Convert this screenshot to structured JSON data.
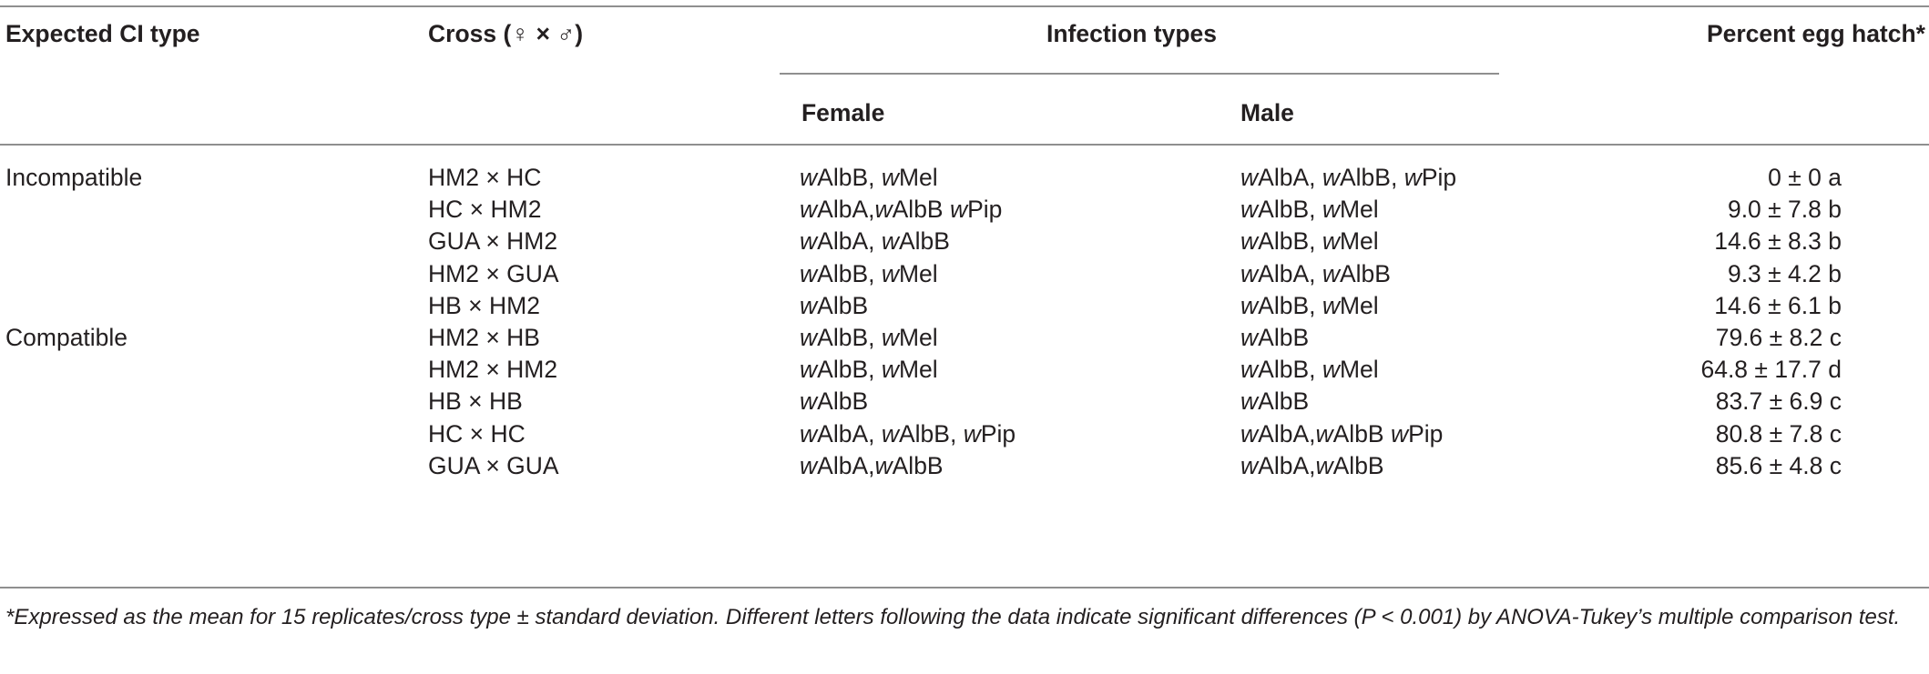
{
  "table": {
    "headers": {
      "ci_type": "Expected CI type",
      "cross": "Cross (♀ × ♂)",
      "infection_types": "Infection types",
      "female": "Female",
      "male": "Male",
      "percent_hatch": "Percent egg hatch*"
    },
    "groups": [
      {
        "label": "Incompatible",
        "rows": [
          {
            "cross": "HM2 × HC",
            "female": "wAlbB, wMel",
            "male": "wAlbA, wAlbB, wPip",
            "hatch": "0 ± 0 a"
          },
          {
            "cross": "HC × HM2",
            "female": "wAlbA,wAlbB wPip",
            "male": "wAlbB, wMel",
            "hatch": "9.0 ± 7.8 b"
          },
          {
            "cross": "GUA × HM2",
            "female": "wAlbA, wAlbB",
            "male": "wAlbB, wMel",
            "hatch": "14.6 ± 8.3 b"
          },
          {
            "cross": "HM2 × GUA",
            "female": "wAlbB, wMel",
            "male": "wAlbA, wAlbB",
            "hatch": "9.3 ± 4.2 b"
          },
          {
            "cross": "HB × HM2",
            "female": "wAlbB",
            "male": "wAlbB, wMel",
            "hatch": "14.6 ± 6.1 b"
          }
        ]
      },
      {
        "label": "Compatible",
        "rows": [
          {
            "cross": "HM2 × HB",
            "female": "wAlbB, wMel",
            "male": "wAlbB",
            "hatch": "79.6 ± 8.2 c"
          },
          {
            "cross": "HM2 × HM2",
            "female": "wAlbB, wMel",
            "male": "wAlbB, wMel",
            "hatch": "64.8 ± 17.7 d"
          },
          {
            "cross": "HB × HB",
            "female": "wAlbB",
            "male": "wAlbB",
            "hatch": "83.7 ± 6.9 c"
          },
          {
            "cross": "HC × HC",
            "female": "wAlbA, wAlbB, wPip",
            "male": "wAlbA,wAlbB wPip",
            "hatch": "80.8 ± 7.8 c"
          },
          {
            "cross": "GUA × GUA",
            "female": "wAlbA,wAlbB",
            "male": "wAlbA,wAlbB",
            "hatch": "85.6 ±  4.8 c"
          }
        ]
      }
    ],
    "footnote": "*Expressed as the mean for 15 replicates/cross type ± standard deviation. Different letters following the data indicate significant differences (P < 0.001) by ANOVA-Tukey’s multiple comparison test."
  }
}
